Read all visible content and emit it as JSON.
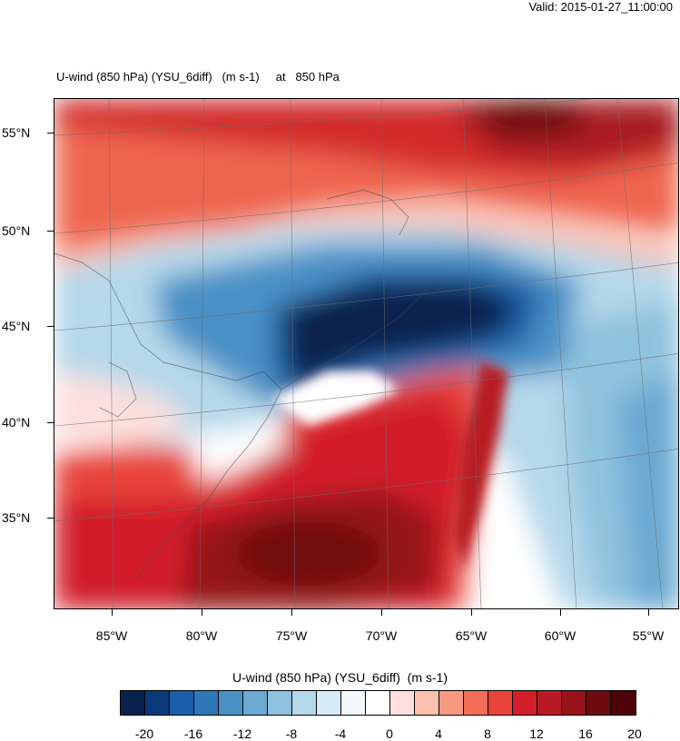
{
  "header": {
    "valid_time": "Valid: 2015-01-27_11:00:00"
  },
  "plot": {
    "title": "U-wind (850 hPa) (YSU_6diff)   (m s-1)     at   850 hPa",
    "lat_labels": [
      "55°N",
      "50°N",
      "45°N",
      "40°N",
      "35°N"
    ],
    "lon_labels": [
      "85°W",
      "80°W",
      "75°W",
      "70°W",
      "65°W",
      "60°W",
      "55°W"
    ]
  },
  "colorbar": {
    "title": "U-wind (850 hPa) (YSU_6diff)  (m s-1)",
    "labels": [
      "-20",
      "-16",
      "-12",
      "-8",
      "-4",
      "0",
      "4",
      "8",
      "12",
      "16",
      "20"
    ],
    "colors": [
      "#08224d",
      "#0b3a7a",
      "#1b5fa8",
      "#2f78b8",
      "#4a91c6",
      "#6aa9d2",
      "#8fc2de",
      "#b5d8ea",
      "#d6ecf6",
      "#f2f8fc",
      "#ffffff",
      "#fde0dd",
      "#fbbfae",
      "#f79a82",
      "#f26e58",
      "#e8443a",
      "#d21f2a",
      "#b71a24",
      "#951319",
      "#6f0a10",
      "#4f0308"
    ]
  }
}
